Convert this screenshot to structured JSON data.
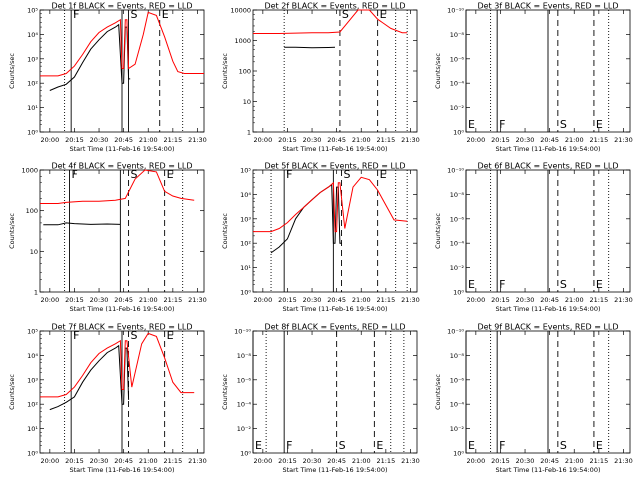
{
  "figure": {
    "x_ticks": [
      "20:00",
      "20:15",
      "20:30",
      "20:45",
      "21:00",
      "21:15",
      "21:30"
    ],
    "x_title": "Start Time (11-Feb-16 19:54:00)",
    "y_title": "Counts/sec",
    "colors": {
      "events": "#000000",
      "lld": "#ff0000"
    }
  },
  "chart_data": [
    {
      "type": "line",
      "title": "Det 1f BLACK = Events, RED = LLD",
      "xlabel": "Start Time (11-Feb-16 19:54:00)",
      "ylabel": "Counts/sec",
      "xlim": [
        "19:54",
        "21:34"
      ],
      "y_scale": "log",
      "ylim": [
        1,
        100000
      ],
      "y_ticks": [
        "10⁰",
        "10¹",
        "10²",
        "10³",
        "10⁴",
        "10⁵"
      ],
      "markers": [
        {
          "type": "solid",
          "x": "20:13",
          "label": "F"
        },
        {
          "type": "solid",
          "x": "20:44",
          "label": ""
        },
        {
          "type": "solid",
          "x": "20:48",
          "label": "S"
        },
        {
          "type": "dashed",
          "x": "21:07",
          "label": "E"
        },
        {
          "type": "dotted",
          "x": "20:09",
          "label": ""
        },
        {
          "type": "dotted",
          "x": "21:21",
          "label": ""
        }
      ],
      "series": [
        {
          "name": "Events",
          "color": "#000000",
          "x": [
            "20:00",
            "20:05",
            "20:10",
            "20:15",
            "20:20",
            "20:25",
            "20:30",
            "20:35",
            "20:40",
            "20:42",
            "20:44",
            "20:45",
            "20:46",
            "20:47",
            "20:48",
            "20:49"
          ],
          "y": [
            50,
            70,
            90,
            180,
            700,
            2500,
            6000,
            13000,
            20000,
            25000,
            100,
            100,
            20000,
            20000,
            150,
            150
          ]
        },
        {
          "name": "LLD",
          "color": "#ff0000",
          "x": [
            "19:54",
            "20:05",
            "20:10",
            "20:15",
            "20:20",
            "20:25",
            "20:30",
            "20:35",
            "20:40",
            "20:43",
            "20:44",
            "20:45",
            "20:46",
            "20:47",
            "20:48",
            "20:52",
            "20:57",
            "21:00",
            "21:05",
            "21:10",
            "21:15",
            "21:18",
            "21:22",
            "21:34"
          ],
          "y": [
            200,
            200,
            250,
            500,
            1500,
            5000,
            12000,
            20000,
            30000,
            40000,
            400,
            400,
            40000,
            40000,
            400,
            600,
            10000,
            80000,
            60000,
            8000,
            800,
            300,
            250,
            250
          ]
        }
      ]
    },
    {
      "type": "line",
      "title": "Det 2f BLACK = Events, RED = LLD",
      "xlabel": "Start Time (11-Feb-16 19:54:00)",
      "ylabel": "Counts/sec",
      "xlim": [
        "19:54",
        "21:34"
      ],
      "y_scale": "log",
      "ylim": [
        1,
        10000
      ],
      "y_ticks": [
        "1",
        "10",
        "100",
        "1000",
        "10000"
      ],
      "markers": [
        {
          "type": "dashed",
          "x": "20:47",
          "label": "S"
        },
        {
          "type": "dashed",
          "x": "21:10",
          "label": "E"
        },
        {
          "type": "dotted",
          "x": "20:13",
          "label": ""
        },
        {
          "type": "dotted",
          "x": "21:21",
          "label": ""
        },
        {
          "type": "dotted",
          "x": "21:28",
          "label": ""
        }
      ],
      "series": [
        {
          "name": "Events",
          "color": "#000000",
          "x": [
            "20:13",
            "20:20",
            "20:30",
            "20:40",
            "20:44"
          ],
          "y": [
            600,
            600,
            580,
            590,
            600
          ]
        },
        {
          "name": "LLD",
          "color": "#ff0000",
          "x": [
            "19:54",
            "20:10",
            "20:20",
            "20:30",
            "20:40",
            "20:47",
            "20:52",
            "20:58",
            "21:05",
            "21:10",
            "21:18",
            "21:25",
            "21:28"
          ],
          "y": [
            1700,
            1700,
            1750,
            1800,
            1800,
            1900,
            4000,
            12000,
            10000,
            5000,
            2500,
            1800,
            1800
          ]
        }
      ]
    },
    {
      "type": "line",
      "title": "Det 3f BLACK = Events, RED = LLD",
      "xlabel": "Start Time (11-Feb-16 19:54:00)",
      "ylabel": "Counts/sec",
      "xlim": [
        "19:54",
        "21:34"
      ],
      "y_scale": "log",
      "ylim": [
        1,
        1e-10
      ],
      "y_ticks": [
        "10⁰",
        "10⁻²",
        "10⁻⁴",
        "10⁻⁶",
        "10⁻⁸",
        "10⁻¹⁰"
      ],
      "markers": [
        {
          "type": "solid",
          "x": "19:54",
          "label": "E"
        },
        {
          "type": "solid",
          "x": "20:13",
          "label": "F"
        },
        {
          "type": "solid",
          "x": "20:44",
          "label": ""
        },
        {
          "type": "dashed",
          "x": "20:50",
          "label": "S"
        },
        {
          "type": "dashed",
          "x": "21:12",
          "label": "E"
        },
        {
          "type": "dotted",
          "x": "20:09",
          "label": ""
        },
        {
          "type": "dotted",
          "x": "21:21",
          "label": ""
        }
      ],
      "series": []
    },
    {
      "type": "line",
      "title": "Det 4f BLACK = Events, RED = LLD",
      "xlabel": "Start Time (11-Feb-16 19:54:00)",
      "ylabel": "Counts/sec",
      "xlim": [
        "19:54",
        "21:34"
      ],
      "y_scale": "log",
      "ylim": [
        1,
        1000
      ],
      "y_ticks": [
        "1",
        "10",
        "100",
        "1000"
      ],
      "markers": [
        {
          "type": "solid",
          "x": "20:12",
          "label": "F"
        },
        {
          "type": "solid",
          "x": "20:43",
          "label": ""
        },
        {
          "type": "dashed",
          "x": "20:48",
          "label": "S"
        },
        {
          "type": "dashed",
          "x": "21:10",
          "label": "E"
        },
        {
          "type": "dotted",
          "x": "20:09",
          "label": ""
        },
        {
          "type": "dotted",
          "x": "21:21",
          "label": ""
        }
      ],
      "series": [
        {
          "name": "Events",
          "color": "#000000",
          "x": [
            "19:56",
            "20:05",
            "20:10",
            "20:15",
            "20:25",
            "20:35",
            "20:43"
          ],
          "y": [
            45,
            45,
            50,
            48,
            46,
            47,
            46
          ]
        },
        {
          "name": "LLD",
          "color": "#ff0000",
          "x": [
            "19:54",
            "20:05",
            "20:10",
            "20:20",
            "20:30",
            "20:40",
            "20:46",
            "20:52",
            "20:58",
            "21:05",
            "21:10",
            "21:15",
            "21:20",
            "21:28"
          ],
          "y": [
            150,
            150,
            160,
            170,
            170,
            180,
            200,
            600,
            1000,
            900,
            300,
            230,
            200,
            180
          ]
        }
      ]
    },
    {
      "type": "line",
      "title": "Det 5f BLACK = Events, RED = LLD",
      "xlabel": "Start Time (11-Feb-16 19:54:00)",
      "ylabel": "Counts/sec",
      "xlim": [
        "19:54",
        "21:34"
      ],
      "y_scale": "log",
      "ylim": [
        1,
        100000
      ],
      "y_ticks": [
        "10⁰",
        "10¹",
        "10²",
        "10³",
        "10⁴",
        "10⁵"
      ],
      "markers": [
        {
          "type": "solid",
          "x": "20:13",
          "label": "F"
        },
        {
          "type": "solid",
          "x": "20:43",
          "label": ""
        },
        {
          "type": "dashed",
          "x": "20:48",
          "label": "S"
        },
        {
          "type": "dashed",
          "x": "21:10",
          "label": "E"
        },
        {
          "type": "dotted",
          "x": "20:05",
          "label": ""
        },
        {
          "type": "dotted",
          "x": "21:21",
          "label": ""
        },
        {
          "type": "dotted",
          "x": "21:28",
          "label": ""
        }
      ],
      "series": [
        {
          "name": "Events",
          "color": "#000000",
          "x": [
            "20:05",
            "20:10",
            "20:15",
            "20:20",
            "20:25",
            "20:30",
            "20:35",
            "20:40",
            "20:42",
            "20:43",
            "20:44",
            "20:45",
            "20:46",
            "20:47",
            "20:48"
          ],
          "y": [
            40,
            70,
            150,
            1000,
            3000,
            6000,
            12000,
            20000,
            25000,
            100,
            100,
            20000,
            20000,
            100,
            100
          ]
        },
        {
          "name": "LLD",
          "color": "#ff0000",
          "x": [
            "19:54",
            "20:05",
            "20:10",
            "20:15",
            "20:20",
            "20:25",
            "20:30",
            "20:35",
            "20:40",
            "20:43",
            "20:44",
            "20:45",
            "20:46",
            "20:47",
            "20:50",
            "20:55",
            "21:00",
            "21:05",
            "21:10",
            "21:20",
            "21:28"
          ],
          "y": [
            300,
            300,
            400,
            700,
            1500,
            3000,
            6000,
            12000,
            20000,
            30000,
            300,
            300,
            30000,
            30000,
            400,
            20000,
            50000,
            40000,
            15000,
            900,
            800
          ]
        }
      ]
    },
    {
      "type": "line",
      "title": "Det 6f BLACK = Events, RED = LLD",
      "xlabel": "Start Time (11-Feb-16 19:54:00)",
      "ylabel": "Counts/sec",
      "xlim": [
        "19:54",
        "21:34"
      ],
      "y_scale": "log",
      "ylim": [
        1,
        1e-10
      ],
      "y_ticks": [
        "10⁰",
        "10⁻²",
        "10⁻⁴",
        "10⁻⁶",
        "10⁻⁸",
        "10⁻¹⁰"
      ],
      "markers": [
        {
          "type": "solid",
          "x": "19:54",
          "label": "E"
        },
        {
          "type": "solid",
          "x": "20:13",
          "label": "F"
        },
        {
          "type": "solid",
          "x": "20:44",
          "label": ""
        },
        {
          "type": "dashed",
          "x": "20:50",
          "label": "S"
        },
        {
          "type": "dashed",
          "x": "21:12",
          "label": "E"
        },
        {
          "type": "dotted",
          "x": "20:09",
          "label": ""
        },
        {
          "type": "dotted",
          "x": "21:21",
          "label": ""
        }
      ],
      "series": []
    },
    {
      "type": "line",
      "title": "Det 7f BLACK = Events, RED = LLD",
      "xlabel": "Start Time (11-Feb-16 19:54:00)",
      "ylabel": "Counts/sec",
      "xlim": [
        "19:54",
        "21:34"
      ],
      "y_scale": "log",
      "ylim": [
        1,
        100000
      ],
      "y_ticks": [
        "10⁰",
        "10¹",
        "10²",
        "10³",
        "10⁴",
        "10⁵"
      ],
      "markers": [
        {
          "type": "solid",
          "x": "20:13",
          "label": "F"
        },
        {
          "type": "solid",
          "x": "20:44",
          "label": ""
        },
        {
          "type": "dashed",
          "x": "20:48",
          "label": "S"
        },
        {
          "type": "dashed",
          "x": "21:10",
          "label": "E"
        },
        {
          "type": "dotted",
          "x": "20:09",
          "label": ""
        },
        {
          "type": "dotted",
          "x": "21:21",
          "label": ""
        }
      ],
      "series": [
        {
          "name": "Events",
          "color": "#000000",
          "x": [
            "20:00",
            "20:05",
            "20:10",
            "20:15",
            "20:20",
            "20:25",
            "20:30",
            "20:35",
            "20:40",
            "20:42",
            "20:44",
            "20:45",
            "20:46",
            "20:47",
            "20:48"
          ],
          "y": [
            60,
            80,
            120,
            200,
            800,
            2500,
            6000,
            13000,
            20000,
            25000,
            100,
            100,
            20000,
            20000,
            150
          ]
        },
        {
          "name": "LLD",
          "color": "#ff0000",
          "x": [
            "19:54",
            "20:05",
            "20:10",
            "20:15",
            "20:20",
            "20:25",
            "20:30",
            "20:35",
            "20:40",
            "20:43",
            "20:44",
            "20:45",
            "20:46",
            "20:47",
            "20:50",
            "20:56",
            "21:00",
            "21:05",
            "21:10",
            "21:15",
            "21:20",
            "21:28"
          ],
          "y": [
            200,
            200,
            250,
            500,
            1500,
            5000,
            12000,
            20000,
            30000,
            40000,
            400,
            400,
            40000,
            40000,
            500,
            30000,
            80000,
            60000,
            8000,
            800,
            300,
            300
          ]
        }
      ]
    },
    {
      "type": "line",
      "title": "Det 8f BLACK = Events, RED = LLD",
      "xlabel": "Start Time (11-Feb-16 19:54:00)",
      "ylabel": "Counts/sec",
      "xlim": [
        "19:54",
        "21:34"
      ],
      "y_scale": "log",
      "ylim": [
        1,
        1e-10
      ],
      "y_ticks": [
        "10⁰",
        "10⁻²",
        "10⁻⁴",
        "10⁻⁶",
        "10⁻⁸",
        "10⁻¹⁰"
      ],
      "markers": [
        {
          "type": "solid",
          "x": "19:54",
          "label": "E"
        },
        {
          "type": "solid",
          "x": "20:13",
          "label": "F"
        },
        {
          "type": "dashed",
          "x": "20:45",
          "label": "S"
        },
        {
          "type": "dashed",
          "x": "21:08",
          "label": "E"
        },
        {
          "type": "dotted",
          "x": "20:02",
          "label": ""
        },
        {
          "type": "dotted",
          "x": "21:18",
          "label": ""
        },
        {
          "type": "dotted",
          "x": "21:26",
          "label": ""
        }
      ],
      "series": []
    },
    {
      "type": "line",
      "title": "Det 9f BLACK = Events, RED = LLD",
      "xlabel": "Start Time (11-Feb-16 19:54:00)",
      "ylabel": "Counts/sec",
      "xlim": [
        "19:54",
        "21:34"
      ],
      "y_scale": "log",
      "ylim": [
        1,
        1e-10
      ],
      "y_ticks": [
        "10⁰",
        "10⁻²",
        "10⁻⁴",
        "10⁻⁶",
        "10⁻⁸",
        "10⁻¹⁰"
      ],
      "markers": [
        {
          "type": "solid",
          "x": "19:54",
          "label": "E"
        },
        {
          "type": "solid",
          "x": "20:13",
          "label": "F"
        },
        {
          "type": "solid",
          "x": "20:44",
          "label": ""
        },
        {
          "type": "dashed",
          "x": "20:50",
          "label": "S"
        },
        {
          "type": "dashed",
          "x": "21:12",
          "label": "E"
        },
        {
          "type": "dotted",
          "x": "20:09",
          "label": ""
        },
        {
          "type": "dotted",
          "x": "21:21",
          "label": ""
        }
      ],
      "series": []
    }
  ]
}
